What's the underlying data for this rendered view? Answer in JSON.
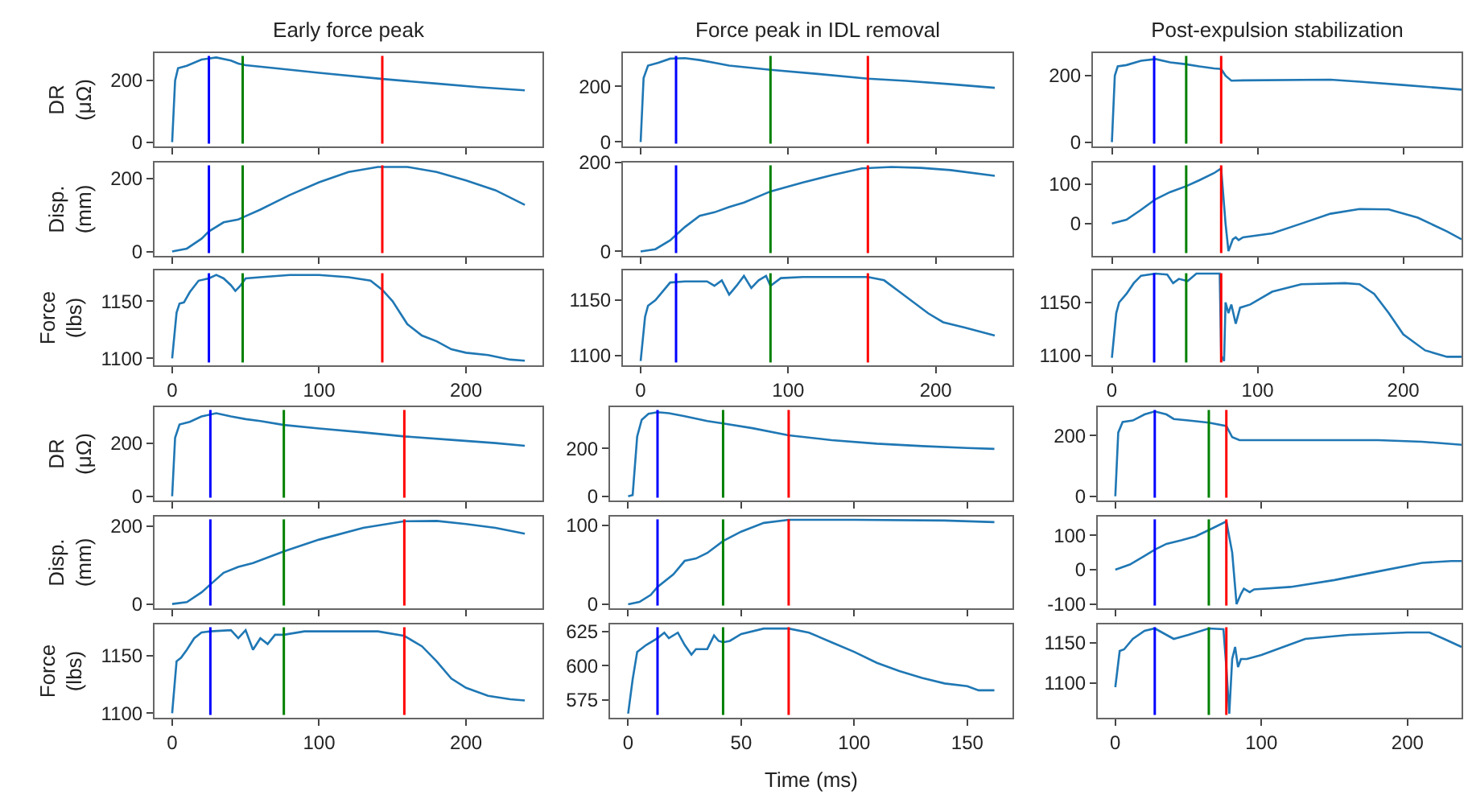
{
  "chart_data": [
    {
      "type": "line",
      "title": "Early force peak",
      "ylabel": "DR\n(μΩ)",
      "color": "#1f77b4",
      "tick_labels": "y",
      "xlim": [
        -12,
        252
      ],
      "xticks": [
        0,
        100,
        200
      ],
      "ylim": [
        -14,
        289
      ],
      "yticks": [
        0,
        200
      ],
      "x": [
        0,
        2,
        4,
        10,
        20,
        30,
        40,
        45,
        50,
        70,
        100,
        143,
        180,
        210,
        240
      ],
      "values": [
        0,
        200,
        240,
        248,
        268,
        275,
        265,
        255,
        250,
        240,
        225,
        205,
        190,
        178,
        168
      ],
      "ref_lines": [
        {
          "axis": "x",
          "value": 25,
          "color": "#0000ff"
        },
        {
          "axis": "x",
          "value": 48,
          "color": "#008000"
        },
        {
          "axis": "x",
          "value": 143,
          "color": "#ff0000"
        }
      ]
    },
    {
      "type": "line",
      "title": "Force peak in IDL removal",
      "color": "#1f77b4",
      "tick_labels": "y",
      "xlim": [
        -12,
        252
      ],
      "xticks": [
        0,
        100,
        200
      ],
      "ylim": [
        -16,
        320
      ],
      "yticks": [
        0,
        200
      ],
      "x": [
        0,
        2,
        5,
        12,
        20,
        30,
        40,
        50,
        60,
        88,
        120,
        154,
        180,
        210,
        240
      ],
      "values": [
        0,
        230,
        275,
        285,
        300,
        302,
        295,
        285,
        275,
        260,
        245,
        228,
        220,
        208,
        195
      ],
      "ref_lines": [
        {
          "axis": "x",
          "value": 24,
          "color": "#0000ff"
        },
        {
          "axis": "x",
          "value": 88,
          "color": "#008000"
        },
        {
          "axis": "x",
          "value": 154,
          "color": "#ff0000"
        }
      ]
    },
    {
      "type": "line",
      "title": "Post-expulsion stabilization",
      "color": "#1f77b4",
      "tick_labels": "y",
      "xlim": [
        -13,
        240
      ],
      "xticks": [
        0,
        100,
        200
      ],
      "ylim": [
        -13,
        268
      ],
      "yticks": [
        0,
        200
      ],
      "x": [
        0,
        2,
        4,
        10,
        20,
        30,
        40,
        50,
        60,
        70,
        75,
        78,
        82,
        90,
        150,
        170,
        200,
        240
      ],
      "values": [
        0,
        200,
        228,
        232,
        245,
        250,
        240,
        235,
        228,
        222,
        220,
        200,
        185,
        186,
        188,
        182,
        172,
        158
      ],
      "ref_lines": [
        {
          "axis": "x",
          "value": 29,
          "color": "#0000ff"
        },
        {
          "axis": "x",
          "value": 51,
          "color": "#008000"
        },
        {
          "axis": "x",
          "value": 75,
          "color": "#ff0000"
        }
      ]
    },
    {
      "type": "line",
      "ylabel": "Disp.\n(mm)",
      "color": "#1f77b4",
      "tick_labels": "y",
      "xlim": [
        -12,
        252
      ],
      "xticks": [
        0,
        100,
        200
      ],
      "ylim": [
        -12,
        244
      ],
      "yticks": [
        0,
        200
      ],
      "x": [
        0,
        10,
        20,
        25,
        35,
        45,
        50,
        60,
        80,
        100,
        120,
        140,
        160,
        180,
        200,
        220,
        240
      ],
      "values": [
        0,
        8,
        35,
        55,
        80,
        88,
        97,
        115,
        155,
        190,
        218,
        232,
        232,
        218,
        195,
        168,
        128
      ],
      "ref_lines": [
        {
          "axis": "x",
          "value": 25,
          "color": "#0000ff"
        },
        {
          "axis": "x",
          "value": 48,
          "color": "#008000"
        },
        {
          "axis": "x",
          "value": 143,
          "color": "#ff0000"
        }
      ]
    },
    {
      "type": "line",
      "color": "#1f77b4",
      "tick_labels": "y",
      "xlim": [
        -12,
        252
      ],
      "xticks": [
        0,
        100,
        200
      ],
      "ylim": [
        -10,
        200
      ],
      "yticks": [
        0,
        200
      ],
      "x": [
        0,
        10,
        20,
        30,
        40,
        50,
        60,
        70,
        88,
        110,
        130,
        150,
        170,
        190,
        210,
        240
      ],
      "values": [
        0,
        5,
        25,
        55,
        80,
        88,
        100,
        110,
        135,
        155,
        172,
        187,
        190,
        188,
        183,
        170
      ],
      "ref_lines": [
        {
          "axis": "x",
          "value": 24,
          "color": "#0000ff"
        },
        {
          "axis": "x",
          "value": 88,
          "color": "#008000"
        },
        {
          "axis": "x",
          "value": 154,
          "color": "#ff0000"
        }
      ]
    },
    {
      "type": "line",
      "color": "#1f77b4",
      "tick_labels": "y",
      "xlim": [
        -13,
        240
      ],
      "xticks": [
        0,
        100,
        200
      ],
      "ylim": [
        -82,
        155
      ],
      "yticks": [
        0,
        100
      ],
      "x": [
        0,
        10,
        20,
        30,
        40,
        51,
        60,
        70,
        75,
        78,
        80,
        83,
        85,
        87,
        90,
        110,
        130,
        150,
        170,
        190,
        210,
        230,
        240
      ],
      "values": [
        0,
        10,
        35,
        62,
        80,
        95,
        110,
        128,
        140,
        0,
        -70,
        -40,
        -35,
        -42,
        -35,
        -25,
        0,
        25,
        37,
        36,
        15,
        -20,
        -40
      ],
      "ref_lines": [
        {
          "axis": "x",
          "value": 29,
          "color": "#0000ff"
        },
        {
          "axis": "x",
          "value": 51,
          "color": "#008000"
        },
        {
          "axis": "x",
          "value": 75,
          "color": "#ff0000"
        }
      ]
    },
    {
      "type": "line",
      "ylabel": "Force\n(lbs)",
      "color": "#1f77b4",
      "xlim": [
        -12,
        252
      ],
      "xticks": [
        0,
        100,
        200
      ],
      "ylim": [
        1094,
        1177
      ],
      "yticks": [
        1100,
        1150
      ],
      "x": [
        0,
        3,
        5,
        8,
        12,
        18,
        25,
        30,
        35,
        40,
        43,
        46,
        50,
        60,
        80,
        100,
        120,
        135,
        143,
        150,
        160,
        170,
        180,
        190,
        200,
        215,
        230,
        240
      ],
      "values": [
        1100,
        1140,
        1148,
        1149,
        1158,
        1168,
        1170,
        1173,
        1170,
        1164,
        1159,
        1163,
        1170,
        1171,
        1173,
        1173,
        1171,
        1168,
        1160,
        1150,
        1130,
        1120,
        1115,
        1108,
        1105,
        1103,
        1099,
        1098
      ],
      "ref_lines": [
        {
          "axis": "x",
          "value": 25,
          "color": "#0000ff"
        },
        {
          "axis": "x",
          "value": 48,
          "color": "#008000"
        },
        {
          "axis": "x",
          "value": 143,
          "color": "#ff0000"
        }
      ]
    },
    {
      "type": "line",
      "color": "#1f77b4",
      "xlim": [
        -12,
        252
      ],
      "xticks": [
        0,
        100,
        200
      ],
      "ylim": [
        1091,
        1177
      ],
      "yticks": [
        1100,
        1150
      ],
      "x": [
        0,
        3,
        5,
        10,
        15,
        20,
        30,
        45,
        50,
        55,
        60,
        65,
        70,
        75,
        80,
        85,
        88,
        95,
        110,
        154,
        165,
        175,
        185,
        195,
        205,
        220,
        240
      ],
      "values": [
        1095,
        1135,
        1145,
        1150,
        1158,
        1166,
        1167,
        1167,
        1163,
        1168,
        1155,
        1163,
        1172,
        1161,
        1168,
        1172,
        1163,
        1170,
        1171,
        1171,
        1168,
        1158,
        1148,
        1138,
        1130,
        1125,
        1118
      ],
      "ref_lines": [
        {
          "axis": "x",
          "value": 24,
          "color": "#0000ff"
        },
        {
          "axis": "x",
          "value": 88,
          "color": "#008000"
        },
        {
          "axis": "x",
          "value": 154,
          "color": "#ff0000"
        }
      ]
    },
    {
      "type": "line",
      "color": "#1f77b4",
      "xlim": [
        -13,
        240
      ],
      "xticks": [
        0,
        100,
        200
      ],
      "ylim": [
        1091,
        1180
      ],
      "yticks": [
        1100,
        1150
      ],
      "x": [
        0,
        3,
        5,
        10,
        15,
        20,
        30,
        38,
        42,
        46,
        52,
        58,
        74,
        75,
        77,
        78,
        80,
        82,
        85,
        88,
        95,
        110,
        130,
        160,
        170,
        180,
        190,
        200,
        215,
        230,
        240
      ],
      "values": [
        1098,
        1140,
        1150,
        1158,
        1168,
        1175,
        1177,
        1176,
        1168,
        1172,
        1170,
        1177,
        1177,
        1100,
        1095,
        1150,
        1140,
        1148,
        1130,
        1145,
        1148,
        1160,
        1167,
        1168,
        1167,
        1158,
        1140,
        1120,
        1105,
        1099,
        1099
      ],
      "ref_lines": [
        {
          "axis": "x",
          "value": 29,
          "color": "#0000ff"
        },
        {
          "axis": "x",
          "value": 51,
          "color": "#008000"
        },
        {
          "axis": "x",
          "value": 75,
          "color": "#ff0000"
        }
      ]
    },
    {
      "type": "line",
      "ylabel": "DR\n(μΩ)",
      "color": "#1f77b4",
      "tick_labels": "y",
      "xlim": [
        -12,
        252
      ],
      "xticks": [
        0,
        100,
        200
      ],
      "ylim": [
        -16,
        335
      ],
      "yticks": [
        0,
        200
      ],
      "x": [
        0,
        2,
        5,
        12,
        20,
        30,
        40,
        50,
        60,
        76,
        100,
        130,
        158,
        190,
        220,
        240
      ],
      "values": [
        0,
        220,
        270,
        280,
        300,
        312,
        300,
        290,
        283,
        268,
        255,
        240,
        225,
        212,
        200,
        190
      ],
      "ref_lines": [
        {
          "axis": "x",
          "value": 26,
          "color": "#0000ff"
        },
        {
          "axis": "x",
          "value": 76,
          "color": "#008000"
        },
        {
          "axis": "x",
          "value": 158,
          "color": "#ff0000"
        }
      ]
    },
    {
      "type": "line",
      "color": "#1f77b4",
      "tick_labels": "y",
      "xlim": [
        -8,
        170
      ],
      "xticks": [
        0,
        50,
        100,
        150
      ],
      "ylim": [
        -18,
        373
      ],
      "yticks": [
        0,
        200
      ],
      "x": [
        0,
        2,
        4,
        6,
        9,
        13,
        18,
        25,
        35,
        42,
        55,
        71,
        90,
        110,
        130,
        150,
        162
      ],
      "values": [
        0,
        5,
        250,
        320,
        345,
        352,
        348,
        335,
        315,
        305,
        285,
        255,
        235,
        220,
        210,
        202,
        198
      ],
      "ref_lines": [
        {
          "axis": "x",
          "value": 13,
          "color": "#0000ff"
        },
        {
          "axis": "x",
          "value": 42,
          "color": "#008000"
        },
        {
          "axis": "x",
          "value": 71,
          "color": "#ff0000"
        }
      ]
    },
    {
      "type": "line",
      "color": "#1f77b4",
      "tick_labels": "y",
      "xlim": [
        -12,
        237
      ],
      "xticks": [
        0,
        100,
        200
      ],
      "ylim": [
        -14,
        294
      ],
      "yticks": [
        0,
        200
      ],
      "x": [
        0,
        2,
        5,
        12,
        20,
        27,
        35,
        40,
        50,
        64,
        76,
        80,
        85,
        120,
        180,
        210,
        237
      ],
      "values": [
        0,
        210,
        245,
        250,
        270,
        280,
        270,
        255,
        250,
        243,
        232,
        195,
        185,
        185,
        185,
        180,
        170
      ],
      "ref_lines": [
        {
          "axis": "x",
          "value": 27,
          "color": "#0000ff"
        },
        {
          "axis": "x",
          "value": 64,
          "color": "#008000"
        },
        {
          "axis": "x",
          "value": 76,
          "color": "#ff0000"
        }
      ]
    },
    {
      "type": "line",
      "ylabel": "Disp.\n(mm)",
      "color": "#1f77b4",
      "tick_labels": "y",
      "xlim": [
        -12,
        252
      ],
      "xticks": [
        0,
        100,
        200
      ],
      "ylim": [
        -11,
        224
      ],
      "yticks": [
        0,
        200
      ],
      "x": [
        0,
        10,
        20,
        26,
        35,
        45,
        55,
        76,
        100,
        130,
        158,
        180,
        200,
        220,
        240
      ],
      "values": [
        0,
        5,
        30,
        50,
        80,
        95,
        105,
        135,
        165,
        195,
        212,
        213,
        205,
        195,
        180
      ],
      "ref_lines": [
        {
          "axis": "x",
          "value": 26,
          "color": "#0000ff"
        },
        {
          "axis": "x",
          "value": 76,
          "color": "#008000"
        },
        {
          "axis": "x",
          "value": 158,
          "color": "#ff0000"
        }
      ]
    },
    {
      "type": "line",
      "color": "#1f77b4",
      "tick_labels": "y",
      "xlim": [
        -8,
        170
      ],
      "xticks": [
        0,
        50,
        100,
        150
      ],
      "ylim": [
        -5,
        111
      ],
      "yticks": [
        0,
        100
      ],
      "x": [
        0,
        5,
        10,
        13,
        20,
        25,
        30,
        35,
        42,
        50,
        60,
        71,
        100,
        140,
        162
      ],
      "values": [
        0,
        3,
        12,
        22,
        38,
        55,
        58,
        65,
        80,
        92,
        103,
        107,
        107,
        106,
        104
      ],
      "ref_lines": [
        {
          "axis": "x",
          "value": 13,
          "color": "#0000ff"
        },
        {
          "axis": "x",
          "value": 42,
          "color": "#008000"
        },
        {
          "axis": "x",
          "value": 71,
          "color": "#ff0000"
        }
      ]
    },
    {
      "type": "line",
      "color": "#1f77b4",
      "tick_labels": "y",
      "xlim": [
        -12,
        237
      ],
      "xticks": [
        0,
        100,
        200
      ],
      "ylim": [
        -112,
        154
      ],
      "yticks": [
        -100,
        0,
        100
      ],
      "x": [
        0,
        10,
        20,
        27,
        35,
        45,
        55,
        64,
        76,
        80,
        83,
        86,
        88,
        92,
        95,
        120,
        150,
        180,
        210,
        230,
        237
      ],
      "values": [
        0,
        15,
        40,
        58,
        75,
        85,
        97,
        115,
        140,
        50,
        -100,
        -70,
        -55,
        -65,
        -57,
        -50,
        -30,
        -5,
        20,
        25,
        25
      ],
      "ref_lines": [
        {
          "axis": "x",
          "value": 27,
          "color": "#0000ff"
        },
        {
          "axis": "x",
          "value": 64,
          "color": "#008000"
        },
        {
          "axis": "x",
          "value": 76,
          "color": "#ff0000"
        }
      ]
    },
    {
      "type": "line",
      "ylabel": "Force\n(lbs)",
      "color": "#1f77b4",
      "xlim": [
        -12,
        252
      ],
      "xticks": [
        0,
        100,
        200
      ],
      "ylim": [
        1096,
        1177
      ],
      "yticks": [
        1100,
        1150
      ],
      "x": [
        0,
        3,
        6,
        10,
        15,
        20,
        26,
        40,
        45,
        50,
        55,
        60,
        65,
        70,
        76,
        90,
        140,
        158,
        170,
        180,
        190,
        200,
        215,
        230,
        240
      ],
      "values": [
        1100,
        1145,
        1148,
        1155,
        1165,
        1170,
        1171,
        1172,
        1165,
        1172,
        1155,
        1165,
        1160,
        1168,
        1168,
        1171,
        1171,
        1167,
        1158,
        1145,
        1130,
        1122,
        1115,
        1112,
        1111
      ],
      "ref_lines": [
        {
          "axis": "x",
          "value": 26,
          "color": "#0000ff"
        },
        {
          "axis": "x",
          "value": 76,
          "color": "#008000"
        },
        {
          "axis": "x",
          "value": 158,
          "color": "#ff0000"
        }
      ]
    },
    {
      "type": "line",
      "xlabel": "Time (ms)",
      "color": "#1f77b4",
      "xlim": [
        -8,
        170
      ],
      "xticks": [
        0,
        50,
        100,
        150
      ],
      "ylim": [
        562,
        630
      ],
      "yticks": [
        575,
        600,
        625
      ],
      "x": [
        0,
        2,
        4,
        8,
        13,
        16,
        18,
        22,
        25,
        28,
        30,
        35,
        38,
        40,
        42,
        45,
        50,
        60,
        71,
        80,
        90,
        100,
        110,
        120,
        130,
        140,
        150,
        155,
        162
      ],
      "values": [
        565,
        590,
        610,
        615,
        620,
        624,
        620,
        624,
        615,
        608,
        612,
        612,
        622,
        618,
        617,
        618,
        623,
        627,
        627,
        624,
        617,
        610,
        602,
        596,
        591,
        587,
        585,
        582,
        582
      ],
      "ref_lines": [
        {
          "axis": "x",
          "value": 13,
          "color": "#0000ff"
        },
        {
          "axis": "x",
          "value": 42,
          "color": "#008000"
        },
        {
          "axis": "x",
          "value": 71,
          "color": "#ff0000"
        }
      ]
    },
    {
      "type": "line",
      "color": "#1f77b4",
      "xlim": [
        -12,
        237
      ],
      "xticks": [
        0,
        100,
        200
      ],
      "ylim": [
        1057,
        1173
      ],
      "yticks": [
        1100,
        1150
      ],
      "x": [
        0,
        3,
        6,
        12,
        20,
        27,
        35,
        40,
        50,
        64,
        74,
        76,
        78,
        80,
        82,
        84,
        86,
        90,
        100,
        115,
        130,
        160,
        200,
        215,
        225,
        237
      ],
      "values": [
        1095,
        1140,
        1142,
        1155,
        1165,
        1168,
        1160,
        1155,
        1160,
        1168,
        1167,
        1120,
        1062,
        1130,
        1145,
        1120,
        1130,
        1130,
        1135,
        1145,
        1155,
        1160,
        1163,
        1163,
        1155,
        1145
      ],
      "ref_lines": [
        {
          "axis": "x",
          "value": 27,
          "color": "#0000ff"
        },
        {
          "axis": "x",
          "value": 64,
          "color": "#008000"
        },
        {
          "axis": "x",
          "value": 76,
          "color": "#ff0000"
        }
      ]
    }
  ]
}
